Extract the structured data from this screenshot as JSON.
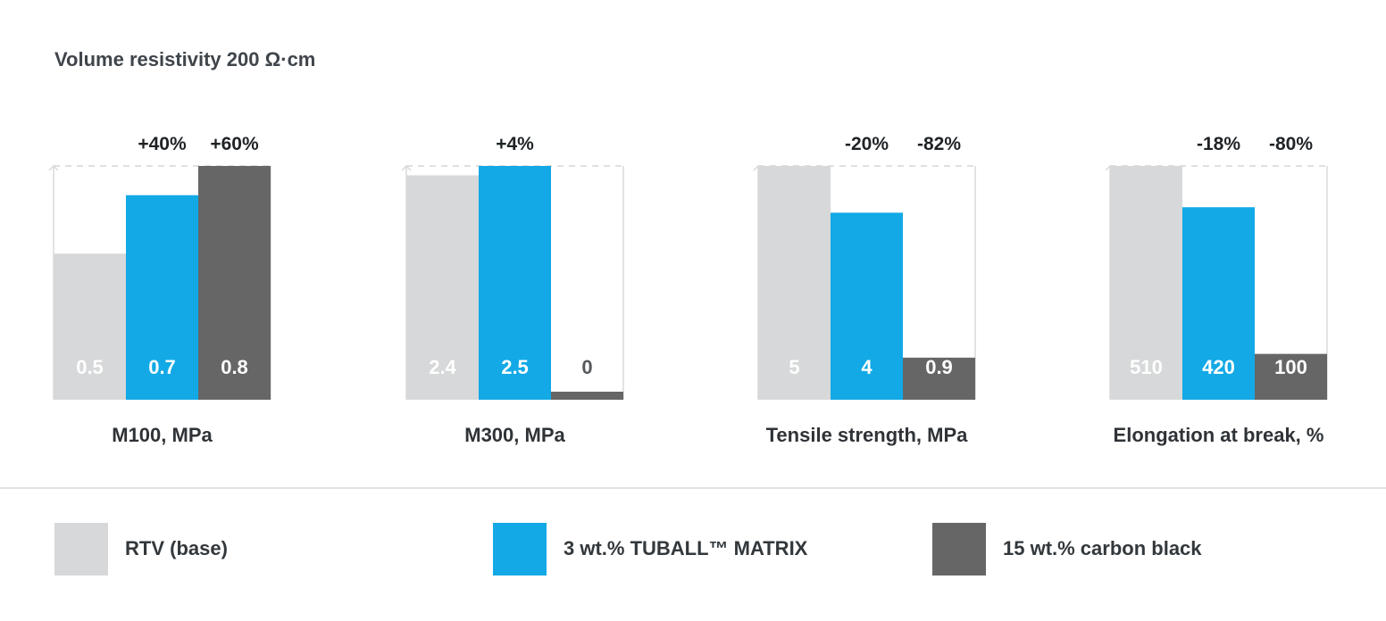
{
  "chart_data": {
    "type": "bar",
    "title": "Volume resistivity 200 Ω·cm",
    "series_names": [
      "RTV (base)",
      "3 wt.% TUBALL™ MATRIX",
      "15 wt.% carbon black"
    ],
    "series_colors": [
      "#d7d8d9",
      "#12a9e6",
      "#666666"
    ],
    "groups": [
      {
        "label": "M100, MPa",
        "values": [
          0.5,
          0.7,
          0.8
        ],
        "value_labels": [
          "0.5",
          "0.7",
          "0.8"
        ],
        "change_labels": [
          "",
          "+40%",
          "+60%"
        ],
        "scale_max": 0.8
      },
      {
        "label": "M300, MPa",
        "values": [
          2.4,
          2.5,
          0
        ],
        "value_labels": [
          "2.4",
          "2.5",
          "0"
        ],
        "change_labels": [
          "",
          "+4%",
          ""
        ],
        "scale_max": 2.5
      },
      {
        "label": "Tensile strength, MPa",
        "values": [
          5,
          4,
          0.9
        ],
        "value_labels": [
          "5",
          "4",
          "0.9"
        ],
        "change_labels": [
          "",
          "-20%",
          "-82%"
        ],
        "scale_max": 5
      },
      {
        "label": "Elongation at break, %",
        "values": [
          510,
          420,
          100
        ],
        "value_labels": [
          "510",
          "420",
          "100"
        ],
        "change_labels": [
          "",
          "-18%",
          "-80%"
        ],
        "scale_max": 510
      }
    ]
  }
}
